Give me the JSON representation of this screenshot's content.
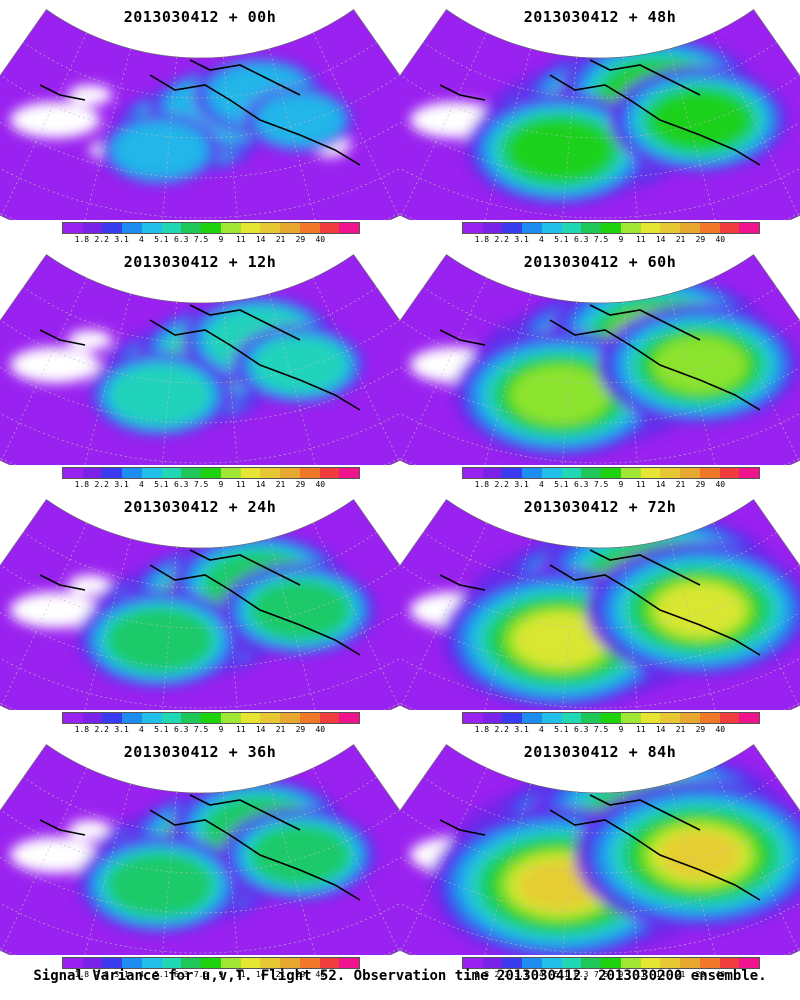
{
  "panels": [
    {
      "title": "2013030412 + 00h",
      "level": 1
    },
    {
      "title": "2013030412 + 48h",
      "level": 4
    },
    {
      "title": "2013030412 + 12h",
      "level": 2
    },
    {
      "title": "2013030412 + 60h",
      "level": 5
    },
    {
      "title": "2013030412 + 24h",
      "level": 3
    },
    {
      "title": "2013030412 + 72h",
      "level": 6
    },
    {
      "title": "2013030412 + 36h",
      "level": 3
    },
    {
      "title": "2013030412 + 84h",
      "level": 7
    }
  ],
  "colorbar": {
    "colors": [
      "#9a22f0",
      "#7a22e8",
      "#3a3af0",
      "#1e8cf0",
      "#22c0e8",
      "#20d8b4",
      "#20c85a",
      "#1ed20e",
      "#a0e632",
      "#e6e632",
      "#e6c832",
      "#e6a82e",
      "#f07828",
      "#f03c3c",
      "#f0148c"
    ],
    "labels": [
      "1.8",
      "2.2",
      "3.1",
      "4",
      "5.1",
      "6.3",
      "7.5",
      "9",
      "11",
      "14",
      "21",
      "29",
      "40"
    ]
  },
  "footer": "Signal Variance for u,v,T. Flight 52. Observation time 2013030412. 2013030200 ensemble."
}
